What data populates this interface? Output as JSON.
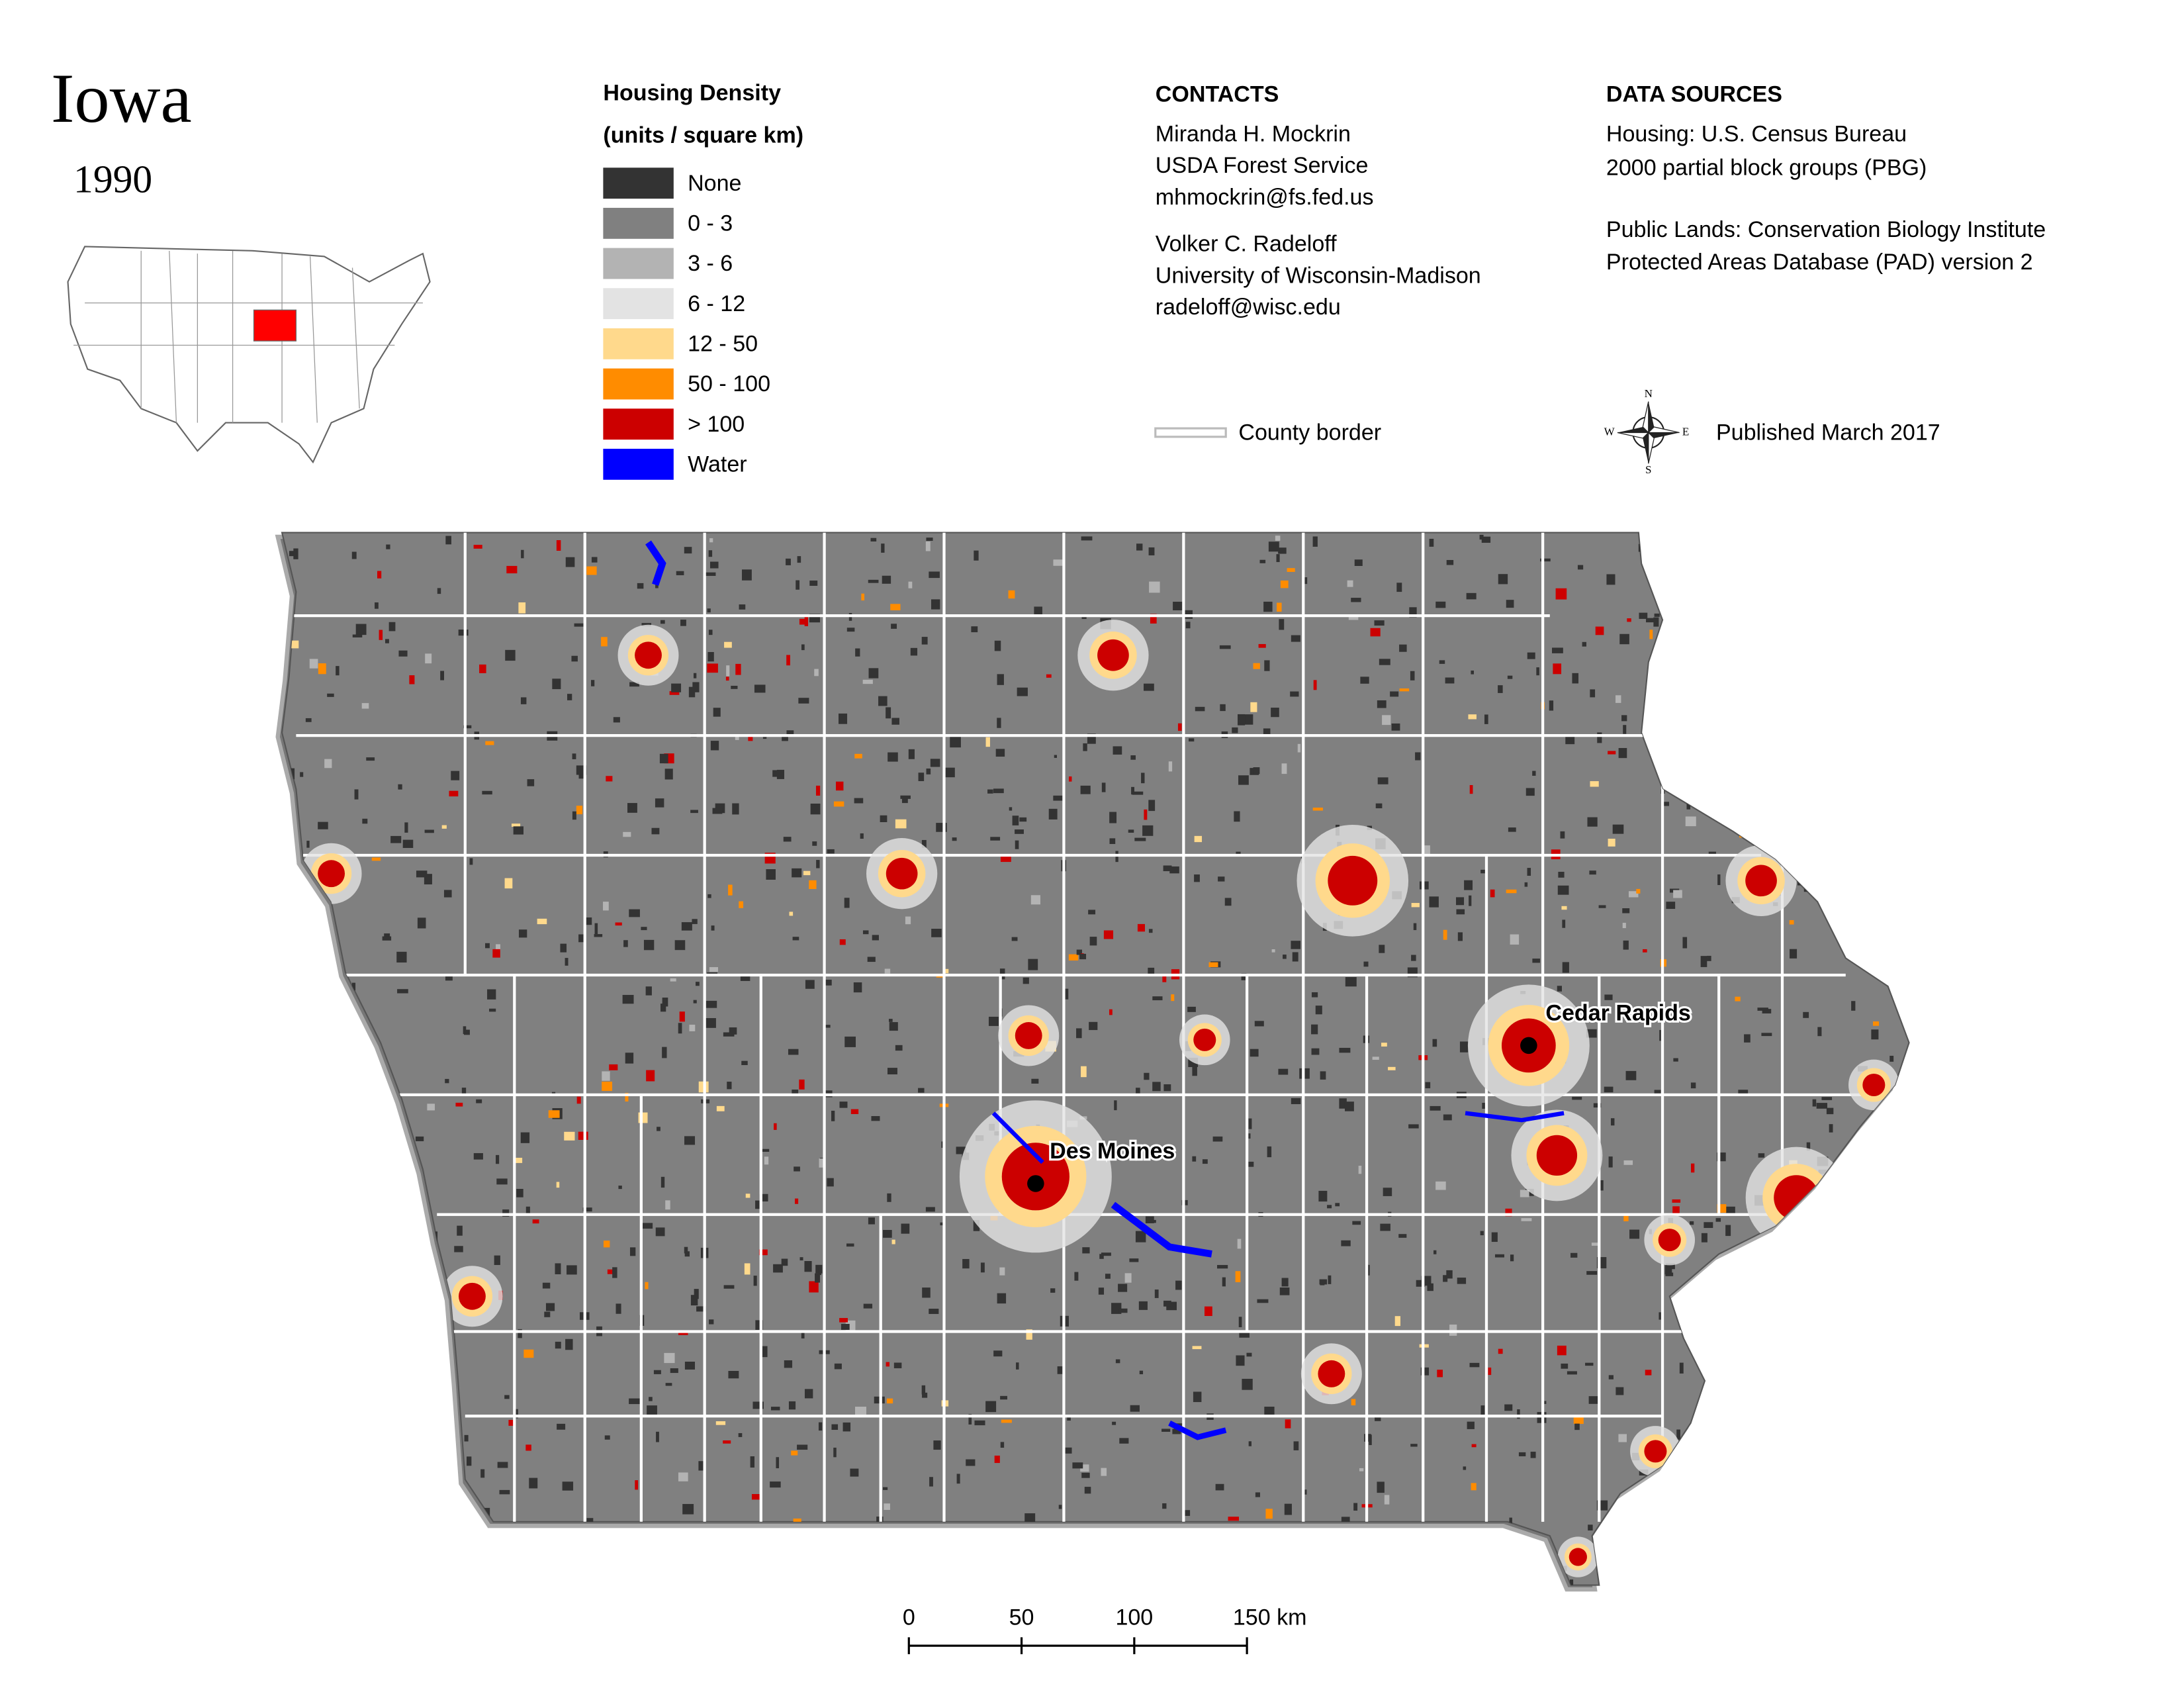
{
  "header": {
    "title": "Iowa",
    "year": "1990"
  },
  "legend": {
    "title": "Housing Density",
    "subtitle": "(units / square km)",
    "items": [
      {
        "label": "None",
        "color": "#333333"
      },
      {
        "label": "0 - 3",
        "color": "#808080"
      },
      {
        "label": "3 - 6",
        "color": "#b3b3b3"
      },
      {
        "label": "6 - 12",
        "color": "#e3e3e3"
      },
      {
        "label": "12 - 50",
        "color": "#ffd98c"
      },
      {
        "label": "50 - 100",
        "color": "#ff8c00"
      },
      {
        "label": "> 100",
        "color": "#cc0000"
      },
      {
        "label": "Water",
        "color": "#0000ff"
      }
    ],
    "county_border": "County border"
  },
  "contacts": {
    "title": "CONTACTS",
    "people": [
      [
        "Miranda H. Mockrin",
        "USDA Forest Service",
        "mhmockrin@fs.fed.us"
      ],
      [
        "Volker C. Radeloff",
        "University of Wisconsin-Madison",
        "radeloff@wisc.edu"
      ]
    ]
  },
  "data_sources": {
    "title": "DATA SOURCES",
    "lines": [
      "Housing: U.S. Census Bureau",
      "2000 partial block groups (PBG)",
      "Public Lands: Conservation Biology Institute",
      "Protected Areas Database (PAD) version 2"
    ],
    "published": "Published March 2017"
  },
  "compass": {
    "n": "N",
    "s": "S",
    "e": "E",
    "w": "W"
  },
  "cities": [
    "Cedar Rapids",
    "Des Moines"
  ],
  "scale_bar": [
    "0",
    "50",
    "100",
    "150 km"
  ]
}
